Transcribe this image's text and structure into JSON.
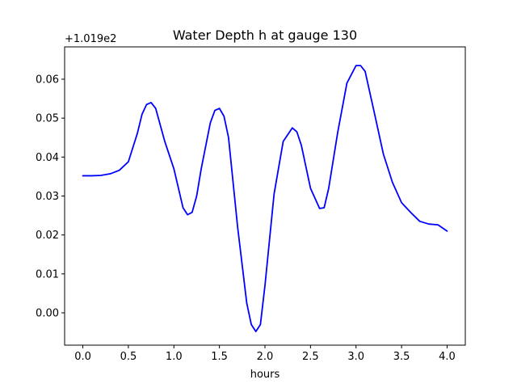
{
  "chart_data": {
    "type": "line",
    "title": "Water Depth h at gauge 130",
    "xlabel": "hours",
    "ylabel": "",
    "y_offset_label": "+1.019e2",
    "y_offset": 101.9,
    "xlim": [
      -0.2,
      4.2
    ],
    "ylim": [
      -0.0083,
      0.0683
    ],
    "x_ticks": [
      0.0,
      0.5,
      1.0,
      1.5,
      2.0,
      2.5,
      3.0,
      3.5,
      4.0
    ],
    "x_tick_labels": [
      "0.0",
      "0.5",
      "1.0",
      "1.5",
      "2.0",
      "2.5",
      "3.0",
      "3.5",
      "4.0"
    ],
    "y_ticks": [
      0.0,
      0.01,
      0.02,
      0.03,
      0.04,
      0.05,
      0.06
    ],
    "y_tick_labels": [
      "0.00",
      "0.01",
      "0.02",
      "0.03",
      "0.04",
      "0.05",
      "0.06"
    ],
    "grid": false,
    "line_color": "#0000ff",
    "series": [
      {
        "x": [
          0.0,
          0.1,
          0.2,
          0.3,
          0.4,
          0.5,
          0.6,
          0.65,
          0.7,
          0.75,
          0.8,
          0.9,
          1.0,
          1.1,
          1.15,
          1.2,
          1.25,
          1.3,
          1.4,
          1.45,
          1.5,
          1.55,
          1.6,
          1.7,
          1.8,
          1.85,
          1.9,
          1.95,
          2.0,
          2.1,
          2.2,
          2.3,
          2.35,
          2.4,
          2.5,
          2.6,
          2.65,
          2.7,
          2.8,
          2.9,
          3.0,
          3.05,
          3.1,
          3.2,
          3.3,
          3.4,
          3.5,
          3.6,
          3.7,
          3.8,
          3.9,
          4.0
        ],
        "y": [
          0.0352,
          0.0352,
          0.0353,
          0.0357,
          0.0366,
          0.0388,
          0.0462,
          0.051,
          0.0535,
          0.054,
          0.0525,
          0.044,
          0.037,
          0.027,
          0.0252,
          0.0258,
          0.03,
          0.037,
          0.0488,
          0.052,
          0.0525,
          0.0505,
          0.045,
          0.022,
          0.0025,
          -0.003,
          -0.0048,
          -0.003,
          0.007,
          0.0305,
          0.044,
          0.0475,
          0.0465,
          0.043,
          0.032,
          0.0268,
          0.027,
          0.032,
          0.0465,
          0.059,
          0.0635,
          0.0635,
          0.062,
          0.0515,
          0.0408,
          0.0335,
          0.0283,
          0.0258,
          0.0235,
          0.0228,
          0.0226,
          0.021
        ]
      }
    ]
  }
}
